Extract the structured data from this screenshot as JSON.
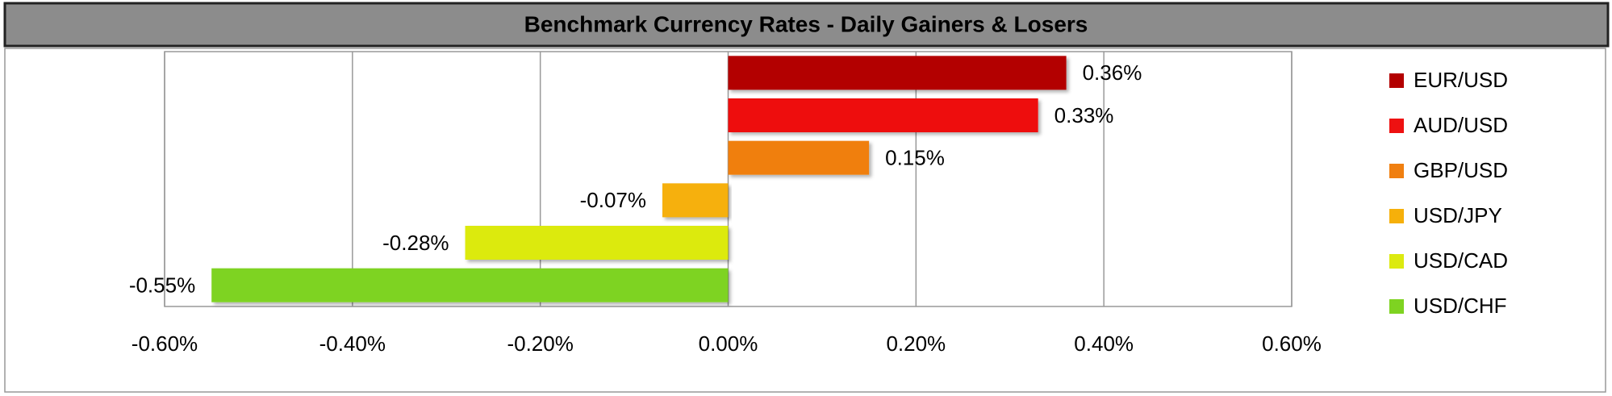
{
  "chart_data": {
    "type": "hbar",
    "title": "Benchmark Currency Rates - Daily Gainers & Losers",
    "categories": [
      "EUR/USD",
      "AUD/USD",
      "GBP/USD",
      "USD/JPY",
      "USD/CAD",
      "USD/CHF"
    ],
    "values": [
      0.36,
      0.33,
      0.15,
      -0.07,
      -0.28,
      -0.55
    ],
    "value_labels": [
      "0.36%",
      "0.33%",
      "0.15%",
      "-0.07%",
      "-0.28%",
      "-0.55%"
    ],
    "colors": [
      "#b30000",
      "#ee1111",
      "#f07f10",
      "#f6b00a",
      "#dcea10",
      "#7ed321"
    ],
    "xlim": [
      -0.6,
      0.6
    ],
    "xticks": [
      {
        "value": -0.6,
        "label": "-0.60%"
      },
      {
        "value": -0.4,
        "label": "-0.40%"
      },
      {
        "value": -0.2,
        "label": "-0.20%"
      },
      {
        "value": 0,
        "label": "0.00%"
      },
      {
        "value": 0.2,
        "label": "0.20%"
      },
      {
        "value": 0.4,
        "label": "0.40%"
      },
      {
        "value": 0.6,
        "label": "0.60%"
      }
    ],
    "grid": true,
    "legend": "right"
  }
}
